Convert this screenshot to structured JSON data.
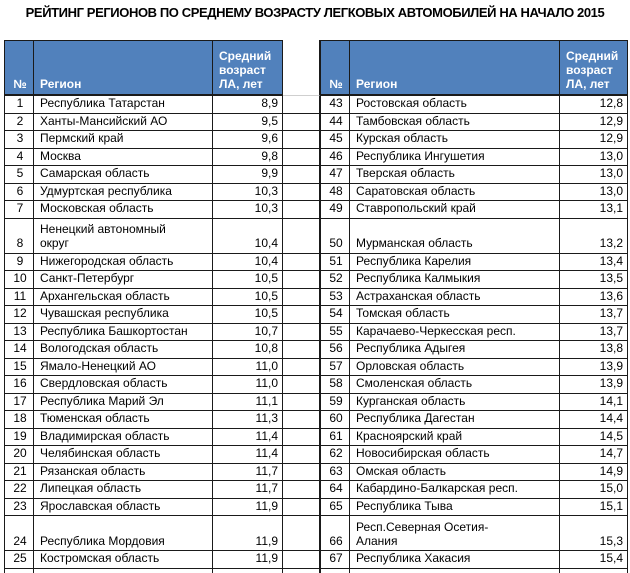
{
  "title": "РЕЙТИНГ РЕГИОНОВ ПО СРЕДНЕМУ ВОЗРАСТУ ЛЕГКОВЫХ АВТОМОБИЛЕЙ НА НАЧАЛО 2015",
  "header": {
    "num": "№",
    "region": "Регион",
    "value": "Средний\nвозраст\nЛА, лет"
  },
  "colors": {
    "header_bg": "#5181BC",
    "header_text": "#FFFFFF",
    "border_dark": "#1A1A1A",
    "grid_light": "#CFCFCF",
    "body_text": "#000000",
    "background": "#FFFFFF"
  },
  "rows": [
    {
      "tall": false,
      "left": {
        "n": "1",
        "region": "Республика Татарстан",
        "value": "8,9"
      },
      "right": {
        "n": "43",
        "region": "Ростовская область",
        "value": "12,8"
      }
    },
    {
      "tall": false,
      "left": {
        "n": "2",
        "region": "Ханты-Мансийский АО",
        "value": "9,5"
      },
      "right": {
        "n": "44",
        "region": "Тамбовская область",
        "value": "12,9"
      }
    },
    {
      "tall": false,
      "left": {
        "n": "3",
        "region": "Пермский край",
        "value": "9,6"
      },
      "right": {
        "n": "45",
        "region": "Курская область",
        "value": "12,9"
      }
    },
    {
      "tall": false,
      "left": {
        "n": "4",
        "region": "Москва",
        "value": "9,8"
      },
      "right": {
        "n": "46",
        "region": "Республика Ингушетия",
        "value": "13,0"
      }
    },
    {
      "tall": false,
      "left": {
        "n": "5",
        "region": "Самарская область",
        "value": "9,9"
      },
      "right": {
        "n": "47",
        "region": "Тверская область",
        "value": "13,0"
      }
    },
    {
      "tall": false,
      "left": {
        "n": "6",
        "region": "Удмуртская республика",
        "value": "10,3"
      },
      "right": {
        "n": "48",
        "region": "Саратовская область",
        "value": "13,0"
      }
    },
    {
      "tall": false,
      "left": {
        "n": "7",
        "region": "Московская область",
        "value": "10,3"
      },
      "right": {
        "n": "49",
        "region": "Ставропольский край",
        "value": "13,1"
      }
    },
    {
      "tall": true,
      "left": {
        "n": "8",
        "region": "Ненецкий автономный\nокруг",
        "value": "10,4"
      },
      "right": {
        "n": "50",
        "region": "Мурманская область",
        "value": "13,2"
      }
    },
    {
      "tall": false,
      "left": {
        "n": "9",
        "region": "Нижегородская область",
        "value": "10,4"
      },
      "right": {
        "n": "51",
        "region": "Республика Карелия",
        "value": "13,4"
      }
    },
    {
      "tall": false,
      "left": {
        "n": "10",
        "region": "Санкт-Петербург",
        "value": "10,5"
      },
      "right": {
        "n": "52",
        "region": "Республика Калмыкия",
        "value": "13,5"
      }
    },
    {
      "tall": false,
      "left": {
        "n": "11",
        "region": "Архангельская область",
        "value": "10,5"
      },
      "right": {
        "n": "53",
        "region": "Астраханская область",
        "value": "13,6"
      }
    },
    {
      "tall": false,
      "left": {
        "n": "12",
        "region": "Чувашская республика",
        "value": "10,5"
      },
      "right": {
        "n": "54",
        "region": "Томская область",
        "value": "13,7"
      }
    },
    {
      "tall": false,
      "left": {
        "n": "13",
        "region": "Республика Башкортостан",
        "value": "10,7"
      },
      "right": {
        "n": "55",
        "region": "Карачаево-Черкесская респ.",
        "value": "13,7"
      }
    },
    {
      "tall": false,
      "left": {
        "n": "14",
        "region": "Вологодская область",
        "value": "10,8"
      },
      "right": {
        "n": "56",
        "region": "Республика Адыгея",
        "value": "13,8"
      }
    },
    {
      "tall": false,
      "left": {
        "n": "15",
        "region": "Ямало-Ненецкий АО",
        "value": "11,0"
      },
      "right": {
        "n": "57",
        "region": "Орловская область",
        "value": "13,9"
      }
    },
    {
      "tall": false,
      "left": {
        "n": "16",
        "region": "Свердловская область",
        "value": "11,0"
      },
      "right": {
        "n": "58",
        "region": "Смоленская область",
        "value": "13,9"
      }
    },
    {
      "tall": false,
      "left": {
        "n": "17",
        "region": "Республика Марий Эл",
        "value": "11,1"
      },
      "right": {
        "n": "59",
        "region": "Курганская область",
        "value": "14,1"
      }
    },
    {
      "tall": false,
      "left": {
        "n": "18",
        "region": "Тюменская область",
        "value": "11,3"
      },
      "right": {
        "n": "60",
        "region": "Республика Дагестан",
        "value": "14,4"
      }
    },
    {
      "tall": false,
      "left": {
        "n": "19",
        "region": "Владимирская область",
        "value": "11,4"
      },
      "right": {
        "n": "61",
        "region": "Красноярский край",
        "value": "14,5"
      }
    },
    {
      "tall": false,
      "left": {
        "n": "20",
        "region": "Челябинская область",
        "value": "11,4"
      },
      "right": {
        "n": "62",
        "region": "Новосибирская область",
        "value": "14,7"
      }
    },
    {
      "tall": false,
      "left": {
        "n": "21",
        "region": "Рязанская область",
        "value": "11,7"
      },
      "right": {
        "n": "63",
        "region": "Омская область",
        "value": "14,9"
      }
    },
    {
      "tall": false,
      "left": {
        "n": "22",
        "region": "Липецкая область",
        "value": "11,7"
      },
      "right": {
        "n": "64",
        "region": "Кабардино-Балкарская респ.",
        "value": "15,0"
      }
    },
    {
      "tall": false,
      "left": {
        "n": "23",
        "region": "Ярославская область",
        "value": "11,9"
      },
      "right": {
        "n": "65",
        "region": "Республика Тыва",
        "value": "15,1"
      }
    },
    {
      "tall": true,
      "left": {
        "n": "24",
        "region": "Республика Мордовия",
        "value": "11,9"
      },
      "right": {
        "n": "66",
        "region": "Респ.Северная Осетия-\nАлания",
        "value": "15,3"
      }
    },
    {
      "tall": false,
      "left": {
        "n": "25",
        "region": "Костромская область",
        "value": "11,9"
      },
      "right": {
        "n": "67",
        "region": "Республика Хакасия",
        "value": "15,4"
      }
    }
  ],
  "chart_data": {
    "type": "table",
    "title": "РЕЙТИНГ РЕГИОНОВ ПО СРЕДНЕМУ ВОЗРАСТУ ЛЕГКОВЫХ АВТОМОБИЛЕЙ НА НАЧАЛО 2015",
    "columns": [
      "№",
      "Регион",
      "Средний возраст ЛА, лет"
    ],
    "rows": [
      [
        1,
        "Республика Татарстан",
        8.9
      ],
      [
        2,
        "Ханты-Мансийский АО",
        9.5
      ],
      [
        3,
        "Пермский край",
        9.6
      ],
      [
        4,
        "Москва",
        9.8
      ],
      [
        5,
        "Самарская область",
        9.9
      ],
      [
        6,
        "Удмуртская республика",
        10.3
      ],
      [
        7,
        "Московская область",
        10.3
      ],
      [
        8,
        "Ненецкий автономный округ",
        10.4
      ],
      [
        9,
        "Нижегородская область",
        10.4
      ],
      [
        10,
        "Санкт-Петербург",
        10.5
      ],
      [
        11,
        "Архангельская область",
        10.5
      ],
      [
        12,
        "Чувашская республика",
        10.5
      ],
      [
        13,
        "Республика Башкортостан",
        10.7
      ],
      [
        14,
        "Вологодская область",
        10.8
      ],
      [
        15,
        "Ямало-Ненецкий АО",
        11.0
      ],
      [
        16,
        "Свердловская область",
        11.0
      ],
      [
        17,
        "Республика Марий Эл",
        11.1
      ],
      [
        18,
        "Тюменская область",
        11.3
      ],
      [
        19,
        "Владимирская область",
        11.4
      ],
      [
        20,
        "Челябинская область",
        11.4
      ],
      [
        21,
        "Рязанская область",
        11.7
      ],
      [
        22,
        "Липецкая область",
        11.7
      ],
      [
        23,
        "Ярославская область",
        11.9
      ],
      [
        24,
        "Республика Мордовия",
        11.9
      ],
      [
        25,
        "Костромская область",
        11.9
      ],
      [
        43,
        "Ростовская область",
        12.8
      ],
      [
        44,
        "Тамбовская область",
        12.9
      ],
      [
        45,
        "Курская область",
        12.9
      ],
      [
        46,
        "Республика Ингушетия",
        13.0
      ],
      [
        47,
        "Тверская область",
        13.0
      ],
      [
        48,
        "Саратовская область",
        13.0
      ],
      [
        49,
        "Ставропольский край",
        13.1
      ],
      [
        50,
        "Мурманская область",
        13.2
      ],
      [
        51,
        "Республика Карелия",
        13.4
      ],
      [
        52,
        "Республика Калмыкия",
        13.5
      ],
      [
        53,
        "Астраханская область",
        13.6
      ],
      [
        54,
        "Томская область",
        13.7
      ],
      [
        55,
        "Карачаево-Черкесская респ.",
        13.7
      ],
      [
        56,
        "Республика Адыгея",
        13.8
      ],
      [
        57,
        "Орловская область",
        13.9
      ],
      [
        58,
        "Смоленская область",
        13.9
      ],
      [
        59,
        "Курганская область",
        14.1
      ],
      [
        60,
        "Республика Дагестан",
        14.4
      ],
      [
        61,
        "Красноярский край",
        14.5
      ],
      [
        62,
        "Новосибирская область",
        14.7
      ],
      [
        63,
        "Омская область",
        14.9
      ],
      [
        64,
        "Кабардино-Балкарская респ.",
        15.0
      ],
      [
        65,
        "Республика Тыва",
        15.1
      ],
      [
        66,
        "Респ.Северная Осетия-Алания",
        15.3
      ],
      [
        67,
        "Республика Хакасия",
        15.4
      ]
    ]
  }
}
